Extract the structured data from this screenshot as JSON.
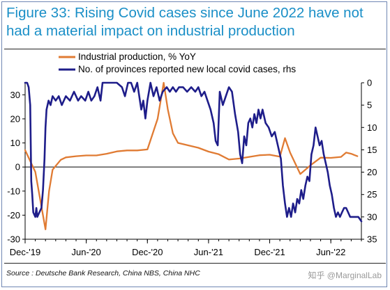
{
  "title": "Figure 33: Rising Covid cases since June 2022 have not had a material impact on industrial production",
  "source": "Source : Deutsche Bank Research, China NBS, China NHC",
  "watermark": "知乎 @MarginalLab",
  "colors": {
    "ip": "#e07b33",
    "provinces": "#1e1d8a",
    "title": "#1a8fc7"
  },
  "chart_data": {
    "type": "line",
    "legend_position": "top-left",
    "grid": false,
    "x": {
      "tick_labels": [
        "Dec-'19",
        "Jun-'20",
        "Dec-'20",
        "Jun-'21",
        "Dec-'21",
        "Jun-'22"
      ],
      "tick_index": [
        0,
        6,
        12,
        18,
        24,
        30
      ],
      "range_index": [
        0,
        33
      ]
    },
    "y_left": {
      "ylim": [
        -30,
        35
      ],
      "ticks": [
        -30,
        -20,
        -10,
        0,
        10,
        20,
        30
      ]
    },
    "y_right": {
      "ylim": [
        35,
        0
      ],
      "inverted": true,
      "ticks": [
        0,
        5,
        10,
        15,
        20,
        25,
        30,
        35
      ]
    },
    "series": [
      {
        "name": "Industrial production, % YoY",
        "axis": "left",
        "color": "#e07b33",
        "points": [
          [
            0,
            7
          ],
          [
            1,
            -2
          ],
          [
            2,
            -25.9
          ],
          [
            2.35,
            -10
          ],
          [
            2.7,
            -1.1
          ],
          [
            3.5,
            3
          ],
          [
            4,
            4
          ],
          [
            5,
            4.5
          ],
          [
            6,
            4.8
          ],
          [
            7,
            4.8
          ],
          [
            8,
            5.5
          ],
          [
            9,
            6.5
          ],
          [
            10,
            6.9
          ],
          [
            11,
            6.9
          ],
          [
            12,
            7.3
          ],
          [
            13,
            20
          ],
          [
            13.6,
            35
          ],
          [
            14,
            24
          ],
          [
            14.5,
            14
          ],
          [
            15,
            10
          ],
          [
            16,
            9
          ],
          [
            17,
            8
          ],
          [
            18,
            6.4
          ],
          [
            19,
            5.3
          ],
          [
            20,
            3.1
          ],
          [
            21,
            3.5
          ],
          [
            22,
            4.2
          ],
          [
            23,
            4.9
          ],
          [
            24,
            5.1
          ],
          [
            25,
            4.3
          ],
          [
            25.5,
            12
          ],
          [
            26,
            6
          ],
          [
            27,
            -2.9
          ],
          [
            28,
            0.7
          ],
          [
            29,
            3.9
          ],
          [
            30,
            3.8
          ],
          [
            31,
            4.2
          ],
          [
            31.5,
            6
          ],
          [
            32,
            5.5
          ],
          [
            32.6,
            4.5
          ]
        ]
      },
      {
        "name": "No. of provinces reported new local covid cases, rhs",
        "axis": "right",
        "color": "#1e1d8a",
        "points": [
          [
            0,
            0
          ],
          [
            0.2,
            0
          ],
          [
            0.35,
            1
          ],
          [
            0.5,
            5
          ],
          [
            0.6,
            22
          ],
          [
            0.7,
            25
          ],
          [
            0.8,
            29
          ],
          [
            1,
            30
          ],
          [
            1.1,
            28
          ],
          [
            1.2,
            30
          ],
          [
            1.4,
            29
          ],
          [
            1.6,
            28
          ],
          [
            1.75,
            24
          ],
          [
            1.9,
            17
          ],
          [
            2,
            10
          ],
          [
            2.1,
            6
          ],
          [
            2.3,
            4
          ],
          [
            2.5,
            5
          ],
          [
            2.7,
            3
          ],
          [
            3,
            4
          ],
          [
            3.3,
            3
          ],
          [
            3.6,
            5
          ],
          [
            4,
            3
          ],
          [
            4.4,
            4
          ],
          [
            4.8,
            2
          ],
          [
            5.2,
            4
          ],
          [
            5.5,
            3
          ],
          [
            5.9,
            4
          ],
          [
            6.2,
            2
          ],
          [
            6.5,
            4
          ],
          [
            6.8,
            3
          ],
          [
            7.1,
            1
          ],
          [
            7.4,
            4
          ],
          [
            7.6,
            0
          ],
          [
            8,
            0
          ],
          [
            8.5,
            0
          ],
          [
            9,
            0
          ],
          [
            9.5,
            1
          ],
          [
            9.8,
            3
          ],
          [
            10.1,
            0
          ],
          [
            10.4,
            0
          ],
          [
            10.7,
            2
          ],
          [
            11,
            0
          ],
          [
            11.4,
            6
          ],
          [
            11.6,
            4
          ],
          [
            11.8,
            8
          ],
          [
            12,
            4
          ],
          [
            12.3,
            0
          ],
          [
            12.6,
            3
          ],
          [
            12.9,
            1
          ],
          [
            13.2,
            4
          ],
          [
            13.5,
            2
          ],
          [
            13.9,
            1
          ],
          [
            14.2,
            2
          ],
          [
            14.5,
            1
          ],
          [
            14.8,
            2
          ],
          [
            15.1,
            1
          ],
          [
            15.5,
            1
          ],
          [
            15.9,
            2
          ],
          [
            16.3,
            1
          ],
          [
            16.7,
            2
          ],
          [
            17,
            1
          ],
          [
            17.3,
            3
          ],
          [
            17.6,
            2
          ],
          [
            17.9,
            4
          ],
          [
            18.2,
            6
          ],
          [
            18.5,
            9
          ],
          [
            18.7,
            13
          ],
          [
            18.9,
            14
          ],
          [
            19.1,
            2
          ],
          [
            19.4,
            5
          ],
          [
            19.7,
            3
          ],
          [
            20,
            1
          ],
          [
            20.3,
            2
          ],
          [
            20.6,
            7
          ],
          [
            20.9,
            11
          ],
          [
            21.1,
            16
          ],
          [
            21.3,
            18
          ],
          [
            21.5,
            12
          ],
          [
            21.7,
            14
          ],
          [
            21.9,
            9
          ],
          [
            22.1,
            8
          ],
          [
            22.3,
            10
          ],
          [
            22.5,
            7
          ],
          [
            22.7,
            9
          ],
          [
            22.9,
            6
          ],
          [
            23.1,
            8
          ],
          [
            23.3,
            6
          ],
          [
            23.6,
            9
          ],
          [
            23.9,
            10
          ],
          [
            24.2,
            12
          ],
          [
            24.5,
            11
          ],
          [
            24.8,
            14
          ],
          [
            25.1,
            17
          ],
          [
            25.3,
            23
          ],
          [
            25.5,
            27
          ],
          [
            25.7,
            30
          ],
          [
            25.9,
            28
          ],
          [
            26.1,
            30
          ],
          [
            26.3,
            27
          ],
          [
            26.5,
            29
          ],
          [
            26.7,
            26
          ],
          [
            26.9,
            27
          ],
          [
            27.1,
            24
          ],
          [
            27.3,
            26
          ],
          [
            27.5,
            23
          ],
          [
            27.7,
            21
          ],
          [
            27.9,
            22
          ],
          [
            28.1,
            16
          ],
          [
            28.3,
            14
          ],
          [
            28.5,
            10
          ],
          [
            28.7,
            12
          ],
          [
            28.9,
            14
          ],
          [
            29.1,
            13
          ],
          [
            29.3,
            16
          ],
          [
            29.5,
            18
          ],
          [
            29.7,
            20
          ],
          [
            29.9,
            23
          ],
          [
            30.1,
            25
          ],
          [
            30.3,
            28
          ],
          [
            30.5,
            30
          ],
          [
            30.7,
            29
          ],
          [
            30.9,
            30
          ],
          [
            31.1,
            29
          ],
          [
            31.3,
            28
          ],
          [
            31.5,
            28
          ],
          [
            31.7,
            29
          ],
          [
            31.9,
            30
          ],
          [
            32.1,
            30
          ],
          [
            32.4,
            30
          ],
          [
            32.7,
            30
          ],
          [
            33,
            31
          ]
        ]
      }
    ]
  }
}
